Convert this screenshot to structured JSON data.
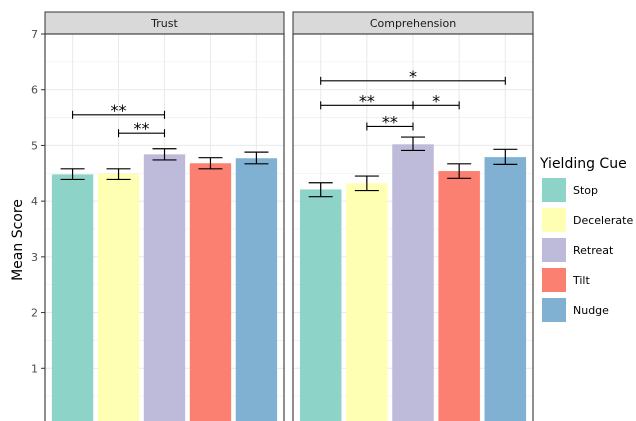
{
  "chart_data": {
    "type": "bar",
    "ylabel": "Mean Score",
    "ylim": [
      0,
      7
    ],
    "yticks": [
      1,
      2,
      3,
      4,
      5,
      6,
      7
    ],
    "grid": true,
    "legend": {
      "title": "Yielding Cue",
      "placement": "right",
      "entries": [
        {
          "name": "Stop",
          "color": "#8dd3c7"
        },
        {
          "name": "Decelerate",
          "color": "#ffffb3"
        },
        {
          "name": "Retreat",
          "color": "#bebada"
        },
        {
          "name": "Tilt",
          "color": "#fb8072"
        },
        {
          "name": "Nudge",
          "color": "#80b1d3"
        }
      ]
    },
    "categories": [
      "Stop",
      "Decelerate",
      "Retreat",
      "Tilt",
      "Nudge"
    ],
    "panels": [
      {
        "title": "Trust",
        "values": [
          4.48,
          4.49,
          4.84,
          4.68,
          4.77
        ],
        "error_low": [
          4.39,
          4.39,
          4.74,
          4.58,
          4.67
        ],
        "error_high": [
          4.58,
          4.58,
          4.94,
          4.78,
          4.88
        ],
        "significance": [
          {
            "from": "Stop",
            "to": "Retreat",
            "y": 5.55,
            "label": "**"
          },
          {
            "from": "Decelerate",
            "to": "Retreat",
            "y": 5.22,
            "label": "**"
          }
        ]
      },
      {
        "title": "Comprehension",
        "values": [
          4.21,
          4.32,
          5.02,
          4.54,
          4.79
        ],
        "error_low": [
          4.08,
          4.19,
          4.91,
          4.41,
          4.66
        ],
        "error_high": [
          4.33,
          4.45,
          5.15,
          4.67,
          4.93
        ],
        "significance": [
          {
            "from": "Stop",
            "to": "Nudge",
            "y": 6.16,
            "label": "*"
          },
          {
            "from": "Stop",
            "to": "Retreat",
            "y": 5.72,
            "label": "**"
          },
          {
            "from": "Retreat",
            "to": "Tilt",
            "y": 5.72,
            "label": "*"
          },
          {
            "from": "Decelerate",
            "to": "Retreat",
            "y": 5.34,
            "label": "**"
          }
        ]
      }
    ]
  }
}
